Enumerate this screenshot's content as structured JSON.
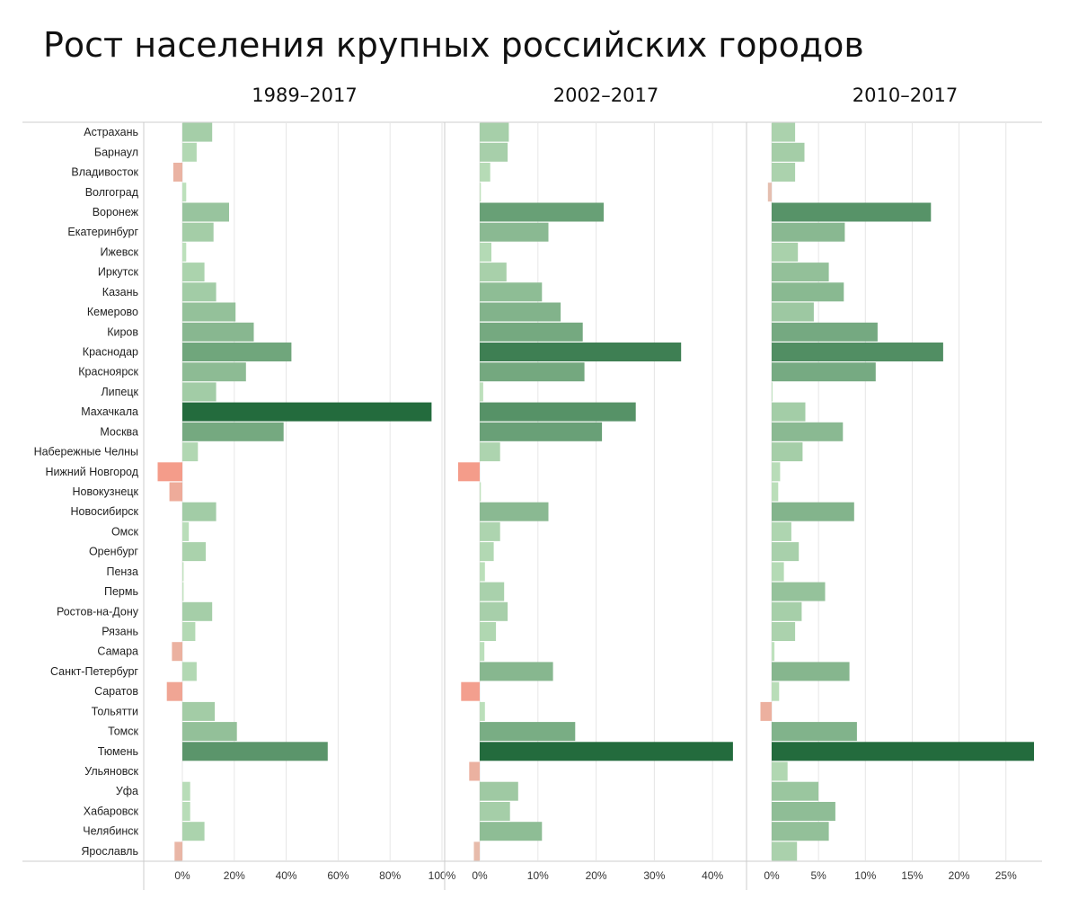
{
  "chart_data": {
    "type": "bar",
    "orientation": "horizontal",
    "title": "Рост населения крупных российских городов",
    "categories": [
      "Астрахань",
      "Барнаул",
      "Владивосток",
      "Волгоград",
      "Воронеж",
      "Екатеринбург",
      "Ижевск",
      "Иркутск",
      "Казань",
      "Кемерово",
      "Киров",
      "Краснодар",
      "Красноярск",
      "Липецк",
      "Махачкала",
      "Москва",
      "Набережные Челны",
      "Нижний Новгород",
      "Новокузнецк",
      "Новосибирск",
      "Омск",
      "Оренбург",
      "Пенза",
      "Пермь",
      "Ростов-на-Дону",
      "Рязань",
      "Самара",
      "Санкт-Петербург",
      "Саратов",
      "Тольятти",
      "Томск",
      "Тюмень",
      "Ульяновск",
      "Уфа",
      "Хабаровск",
      "Челябинск",
      "Ярославль"
    ],
    "panels": [
      {
        "title": "1989–2017",
        "xlim": [
          -15,
          102
        ],
        "ticks": [
          0,
          20,
          40,
          60,
          80,
          100
        ],
        "tick_labels": [
          "0%",
          "20%",
          "40%",
          "60%",
          "80%",
          "100%"
        ],
        "max_value": 96,
        "values": [
          11.5,
          5.5,
          -3.5,
          1.5,
          18,
          12,
          1.5,
          8.5,
          13,
          20.5,
          27.5,
          42,
          24.5,
          13,
          96,
          39,
          6,
          -9.5,
          -5,
          13,
          2.5,
          9,
          0.5,
          0.5,
          11.5,
          5,
          -4,
          5.5,
          -6,
          12.5,
          21,
          56,
          0,
          3,
          3,
          8.5,
          -3
        ]
      },
      {
        "title": "2002–2017",
        "xlim": [
          -4,
          45
        ],
        "ticks": [
          0,
          10,
          20,
          30,
          40
        ],
        "tick_labels": [
          "0%",
          "10%",
          "20%",
          "30%",
          "40%"
        ],
        "max_value": 43.5,
        "values": [
          5,
          4.8,
          1.8,
          0.2,
          21.3,
          11.8,
          2,
          4.6,
          10.7,
          13.9,
          17.7,
          34.6,
          18,
          0.6,
          26.8,
          21,
          3.5,
          -3.7,
          0.2,
          11.8,
          3.5,
          2.4,
          0.9,
          4.2,
          4.8,
          2.8,
          0.8,
          12.6,
          -3.2,
          0.9,
          16.4,
          43.5,
          -1.8,
          6.6,
          5.2,
          10.7,
          -1
        ]
      },
      {
        "title": "2010–2017",
        "xlim": [
          -1.2,
          29.5
        ],
        "ticks": [
          0,
          5,
          10,
          15,
          20,
          25
        ],
        "tick_labels": [
          "0%",
          "5%",
          "10%",
          "15%",
          "20%",
          "25%"
        ],
        "max_value": 28,
        "values": [
          2.5,
          3.5,
          2.5,
          -0.4,
          17,
          7.8,
          2.8,
          6.1,
          7.7,
          4.5,
          11.3,
          18.3,
          11.1,
          0.1,
          3.6,
          7.6,
          3.3,
          0.9,
          0.7,
          8.8,
          2.1,
          2.9,
          1.3,
          5.7,
          3.2,
          2.5,
          0.3,
          8.3,
          0.8,
          -1.2,
          9.1,
          28,
          1.7,
          5,
          6.8,
          6.1,
          2.7
        ]
      }
    ],
    "colors": {
      "pos_light": "#c2e4c0",
      "pos_dark": "#236b3d",
      "neg_light": "#e2c7b8",
      "neg_dark": "#f49c8a",
      "grid": "#e6e6e6",
      "frame": "#cccccc"
    }
  }
}
